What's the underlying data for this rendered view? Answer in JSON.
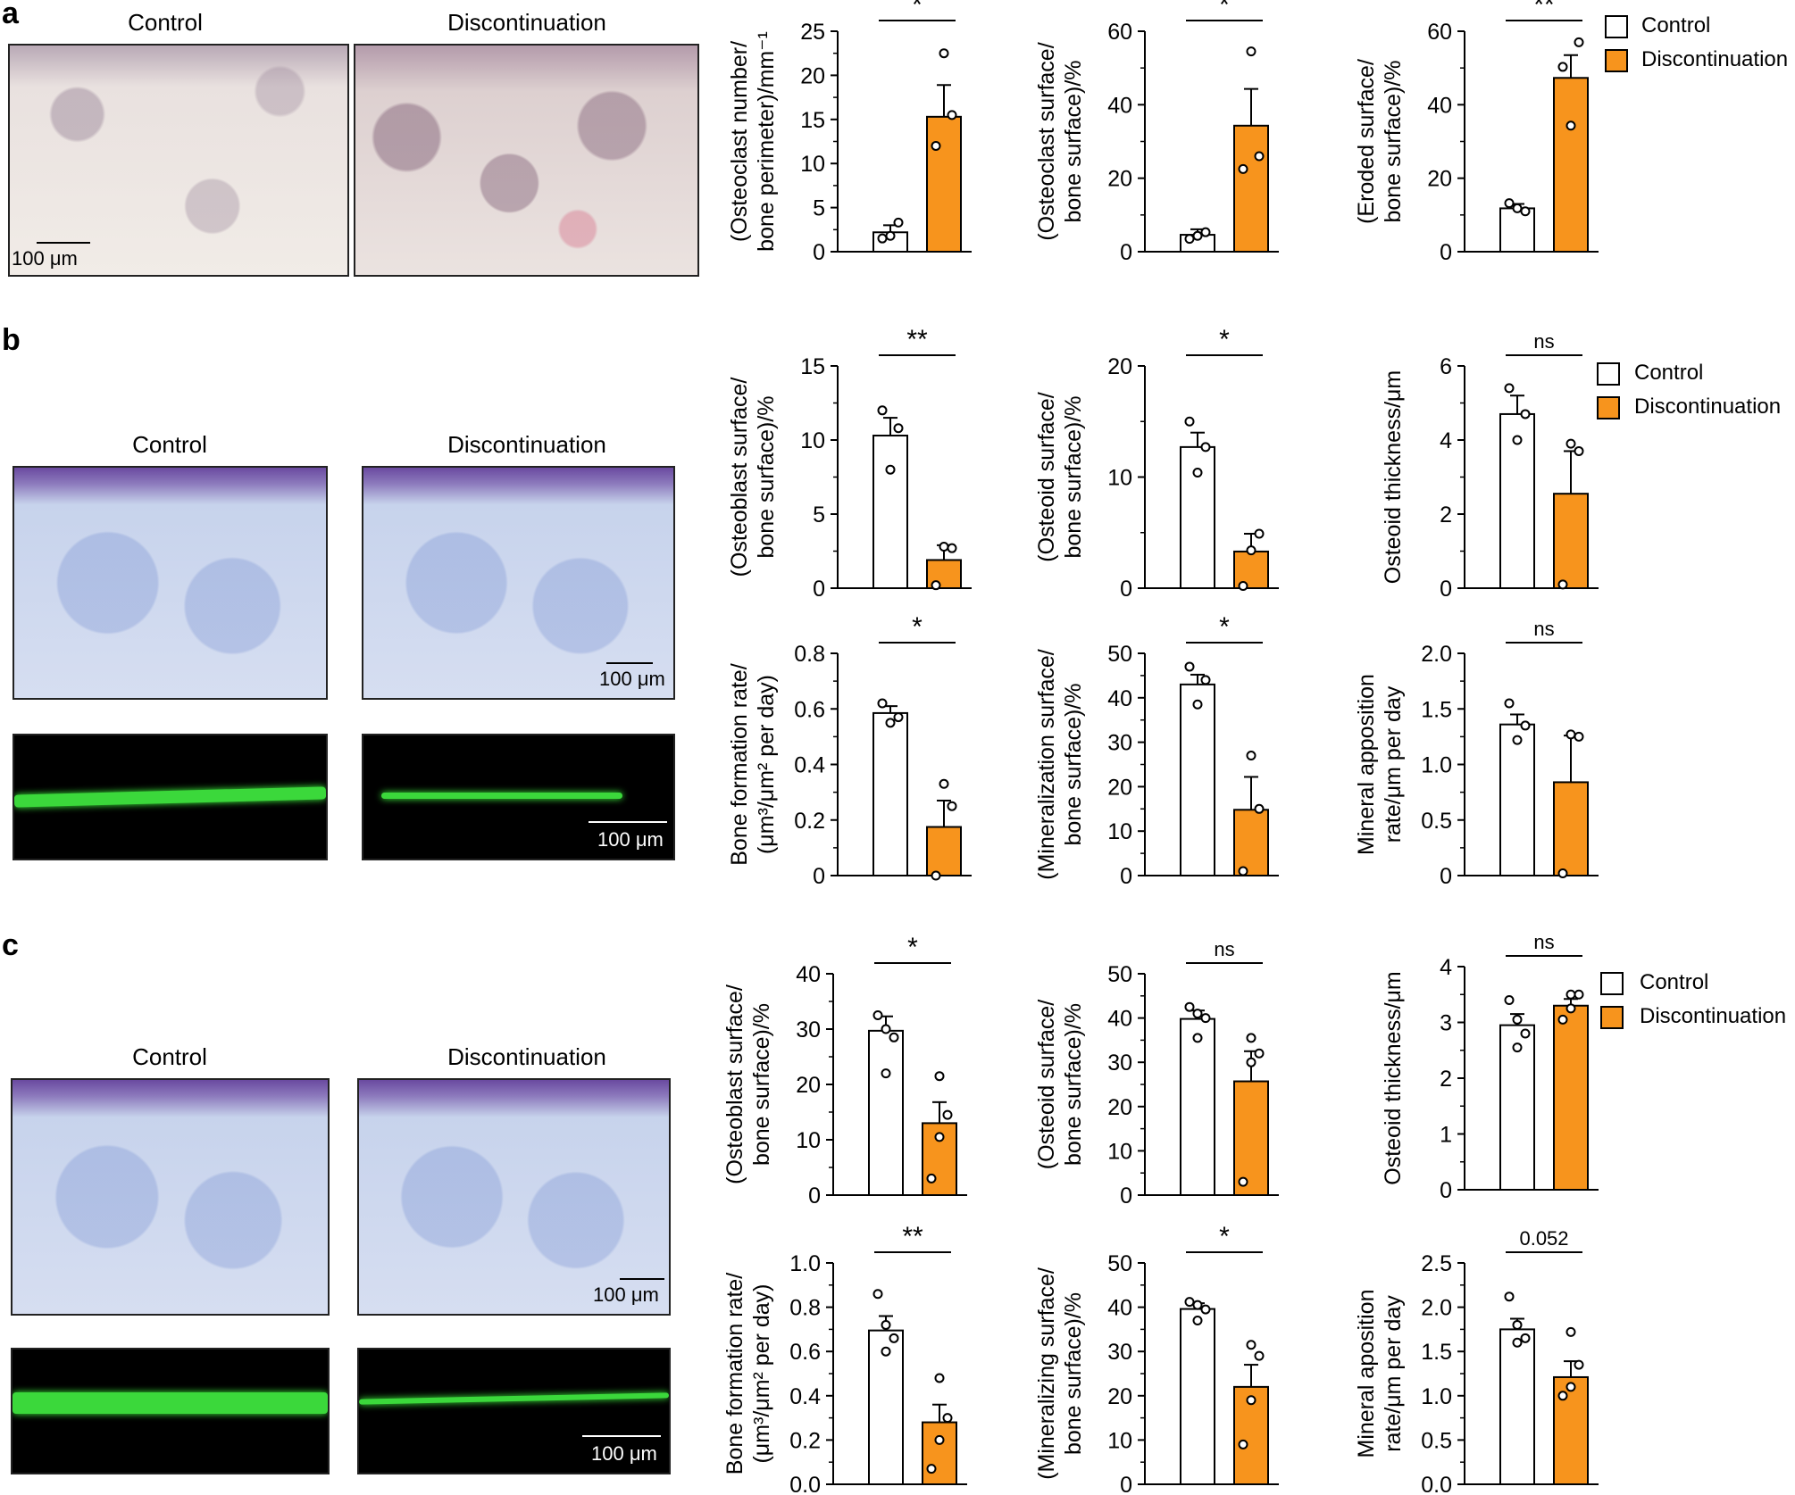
{
  "colors": {
    "control": "#ffffff",
    "discontinuation": "#f7941d",
    "stroke": "#000000"
  },
  "panels": [
    {
      "letter": "a",
      "image_titles": [
        "Control",
        "Discontinuation"
      ],
      "scale_label": "100 μm",
      "legend": [
        "Control",
        "Discontinuation"
      ]
    },
    {
      "letter": "b",
      "image_titles": [
        "Control",
        "Discontinuation"
      ],
      "scale_label_top": "100 μm",
      "scale_label_bottom": "100 μm",
      "legend": [
        "Control",
        "Discontinuation"
      ]
    },
    {
      "letter": "c",
      "image_titles": [
        "Control",
        "Discontinuation"
      ],
      "scale_label_top": "100 μm",
      "scale_label_bottom": "100 μm",
      "legend": [
        "Control",
        "Discontinuation"
      ]
    }
  ],
  "chart_data": [
    {
      "id": "a1",
      "type": "bar",
      "categories": [
        "Control",
        "Discontinuation"
      ],
      "ylabel": [
        "(Osteoclast number/",
        "bone perimeter)/mm⁻¹"
      ],
      "ylim": [
        0,
        25
      ],
      "ticks": [
        "0",
        "5",
        "10",
        "15",
        "20",
        "25"
      ],
      "tickvals": [
        0,
        5,
        10,
        15,
        20,
        25
      ],
      "values": [
        2.2,
        15.3
      ],
      "errors": [
        0.8,
        3.6
      ],
      "points": [
        [
          1.5,
          3.3,
          1.8
        ],
        [
          12.0,
          15.5,
          22.5
        ]
      ],
      "sig": "*"
    },
    {
      "id": "a2",
      "type": "bar",
      "categories": [
        "Control",
        "Discontinuation"
      ],
      "ylabel": [
        "(Osteoclast surface/",
        "bone surface)/%"
      ],
      "ylim": [
        0,
        60
      ],
      "ticks": [
        "0",
        "20",
        "40",
        "60"
      ],
      "tickvals": [
        0,
        20,
        40,
        60
      ],
      "values": [
        4.6,
        34.3
      ],
      "errors": [
        1.5,
        10.0
      ],
      "points": [
        [
          3.5,
          5.3,
          4.3
        ],
        [
          22.5,
          26.0,
          54.5
        ]
      ],
      "sig": "*"
    },
    {
      "id": "a3",
      "type": "bar",
      "categories": [
        "Control",
        "Discontinuation"
      ],
      "ylabel": [
        "(Eroded surface/",
        "bone surface)/%"
      ],
      "ylim": [
        0,
        60
      ],
      "ticks": [
        "0",
        "20",
        "40",
        "60"
      ],
      "tickvals": [
        0,
        20,
        40,
        60
      ],
      "values": [
        11.8,
        47.3
      ],
      "errors": [
        1.2,
        6.2
      ],
      "points": [
        [
          13.2,
          11.0,
          11.8
        ],
        [
          50.3,
          57.0,
          34.3
        ]
      ],
      "sig": "**"
    },
    {
      "id": "b1",
      "type": "bar",
      "categories": [
        "Control",
        "Discontinuation"
      ],
      "ylabel": [
        "(Osteoblast surface/",
        "bone surface)/%"
      ],
      "ylim": [
        0,
        15
      ],
      "ticks": [
        "0",
        "5",
        "10",
        "15"
      ],
      "tickvals": [
        0,
        5,
        10,
        15
      ],
      "values": [
        10.3,
        1.9
      ],
      "errors": [
        1.2,
        1.0
      ],
      "points": [
        [
          12.0,
          10.8,
          8.0
        ],
        [
          0.2,
          2.7,
          2.8
        ]
      ],
      "sig": "**"
    },
    {
      "id": "b2",
      "type": "bar",
      "categories": [
        "Control",
        "Discontinuation"
      ],
      "ylabel": [
        "(Osteoid surface/",
        "bone surface)/%"
      ],
      "ylim": [
        0,
        20
      ],
      "ticks": [
        "0",
        "10",
        "20"
      ],
      "tickvals": [
        0,
        10,
        20
      ],
      "values": [
        12.7,
        3.3
      ],
      "errors": [
        1.3,
        1.6
      ],
      "points": [
        [
          15.0,
          12.7,
          10.4
        ],
        [
          0.2,
          4.9,
          3.4
        ]
      ],
      "sig": "*"
    },
    {
      "id": "b3",
      "type": "bar",
      "categories": [
        "Control",
        "Discontinuation"
      ],
      "ylabel": [
        "Osteoid thickness/μm"
      ],
      "ylim": [
        0,
        6
      ],
      "ticks": [
        "0",
        "2",
        "4",
        "6"
      ],
      "tickvals": [
        0,
        2,
        4,
        6
      ],
      "values": [
        4.7,
        2.55
      ],
      "errors": [
        0.5,
        1.15
      ],
      "points": [
        [
          5.4,
          4.7,
          4.0
        ],
        [
          0.1,
          3.7,
          3.9
        ]
      ],
      "sig": "ns"
    },
    {
      "id": "b4",
      "type": "bar",
      "categories": [
        "Control",
        "Discontinuation"
      ],
      "ylabel": [
        "Bone formation rate/",
        "(μm³/μm² per day)"
      ],
      "ylim": [
        0,
        0.8
      ],
      "ticks": [
        "0",
        "0.2",
        "0.4",
        "0.6",
        "0.8"
      ],
      "tickvals": [
        0,
        0.2,
        0.4,
        0.6,
        0.8
      ],
      "values": [
        0.585,
        0.175
      ],
      "errors": [
        0.025,
        0.095
      ],
      "points": [
        [
          0.62,
          0.57,
          0.55
        ],
        [
          0.0,
          0.25,
          0.33
        ]
      ],
      "sig": "*"
    },
    {
      "id": "b5",
      "type": "bar",
      "categories": [
        "Control",
        "Discontinuation"
      ],
      "ylabel": [
        "(Mineralization surface/",
        "bone surface)/%"
      ],
      "ylim": [
        0,
        50
      ],
      "ticks": [
        "0",
        "10",
        "20",
        "30",
        "40",
        "50"
      ],
      "tickvals": [
        0,
        10,
        20,
        30,
        40,
        50
      ],
      "values": [
        43.0,
        14.8
      ],
      "errors": [
        2.2,
        7.4
      ],
      "points": [
        [
          47.0,
          44.0,
          38.5
        ],
        [
          1.0,
          15.0,
          27.0
        ]
      ],
      "sig": "*"
    },
    {
      "id": "b6",
      "type": "bar",
      "categories": [
        "Control",
        "Discontinuation"
      ],
      "ylabel": [
        "Mineral apposition",
        "rate/μm per day"
      ],
      "ylim": [
        0,
        2.0
      ],
      "ticks": [
        "0",
        "0.5",
        "1.0",
        "1.5",
        "2.0"
      ],
      "tickvals": [
        0,
        0.5,
        1.0,
        1.5,
        2.0
      ],
      "values": [
        1.36,
        0.84
      ],
      "errors": [
        0.09,
        0.42
      ],
      "points": [
        [
          1.55,
          1.35,
          1.22
        ],
        [
          0.02,
          1.25,
          1.27
        ]
      ],
      "sig": "ns"
    },
    {
      "id": "c1",
      "type": "bar",
      "categories": [
        "Control",
        "Discontinuation"
      ],
      "ylabel": [
        "(Osteoblast surface/",
        "bone surface)/%"
      ],
      "ylim": [
        0,
        40
      ],
      "ticks": [
        "0",
        "10",
        "20",
        "30",
        "40"
      ],
      "tickvals": [
        0,
        10,
        20,
        30,
        40
      ],
      "values": [
        29.7,
        13.0
      ],
      "errors": [
        2.6,
        3.8
      ],
      "points": [
        [
          32.5,
          30.0,
          28.5,
          22.0
        ],
        [
          3.0,
          10.5,
          14.5,
          21.5
        ]
      ],
      "sig": "*"
    },
    {
      "id": "c2",
      "type": "bar",
      "categories": [
        "Control",
        "Discontinuation"
      ],
      "ylabel": [
        "(Osteoid surface/",
        "bone surface)/%"
      ],
      "ylim": [
        0,
        50
      ],
      "ticks": [
        "0",
        "10",
        "20",
        "30",
        "40",
        "50"
      ],
      "tickvals": [
        0,
        10,
        20,
        30,
        40,
        50
      ],
      "values": [
        39.8,
        25.7
      ],
      "errors": [
        1.9,
        6.8
      ],
      "points": [
        [
          42.5,
          41.0,
          40.0,
          35.5
        ],
        [
          3.0,
          30.0,
          32.0,
          35.5
        ]
      ],
      "sig": "ns"
    },
    {
      "id": "c3",
      "type": "bar",
      "categories": [
        "Control",
        "Discontinuation"
      ],
      "ylabel": [
        "Osteoid thickness/μm"
      ],
      "ylim": [
        0,
        4
      ],
      "ticks": [
        "0",
        "1",
        "2",
        "3",
        "4"
      ],
      "tickvals": [
        0,
        1,
        2,
        3,
        4
      ],
      "values": [
        2.95,
        3.3
      ],
      "errors": [
        0.2,
        0.12
      ],
      "points": [
        [
          3.4,
          3.05,
          2.8,
          2.55
        ],
        [
          3.05,
          3.25,
          3.5,
          3.5
        ]
      ],
      "sig": "ns"
    },
    {
      "id": "c4",
      "type": "bar",
      "categories": [
        "Control",
        "Discontinuation"
      ],
      "ylabel": [
        "Bone formation rate/",
        "(μm³/μm² per day)"
      ],
      "ylim": [
        0,
        1.0
      ],
      "ticks": [
        "0.0",
        "0.2",
        "0.4",
        "0.6",
        "0.8",
        "1.0"
      ],
      "tickvals": [
        0,
        0.2,
        0.4,
        0.6,
        0.8,
        1.0
      ],
      "values": [
        0.695,
        0.28
      ],
      "errors": [
        0.065,
        0.08
      ],
      "points": [
        [
          0.86,
          0.72,
          0.66,
          0.6
        ],
        [
          0.07,
          0.2,
          0.3,
          0.48
        ]
      ],
      "sig": "**"
    },
    {
      "id": "c5",
      "type": "bar",
      "categories": [
        "Control",
        "Discontinuation"
      ],
      "ylabel": [
        "(Mineralizing surface/",
        "bone surface)/%"
      ],
      "ylim": [
        0,
        50
      ],
      "ticks": [
        "0",
        "10",
        "20",
        "30",
        "40",
        "50"
      ],
      "tickvals": [
        0,
        10,
        20,
        30,
        40,
        50
      ],
      "values": [
        39.6,
        22.0
      ],
      "errors": [
        1.3,
        5.0
      ],
      "points": [
        [
          41.2,
          40.5,
          39.5,
          37.0
        ],
        [
          9.0,
          19.0,
          29.0,
          31.5
        ]
      ],
      "sig": "*"
    },
    {
      "id": "c6",
      "type": "bar",
      "categories": [
        "Control",
        "Discontinuation"
      ],
      "ylabel": [
        "Mineral aposition",
        "rate/μm per day"
      ],
      "ylim": [
        0,
        2.5
      ],
      "ticks": [
        "0.0",
        "0.5",
        "1.0",
        "1.5",
        "2.0",
        "2.5"
      ],
      "tickvals": [
        0,
        0.5,
        1.0,
        1.5,
        2.0,
        2.5
      ],
      "values": [
        1.75,
        1.21
      ],
      "errors": [
        0.12,
        0.18
      ],
      "points": [
        [
          2.12,
          1.8,
          1.65,
          1.6
        ],
        [
          1.0,
          1.1,
          1.35,
          1.72
        ]
      ],
      "sig": "0.052"
    }
  ]
}
